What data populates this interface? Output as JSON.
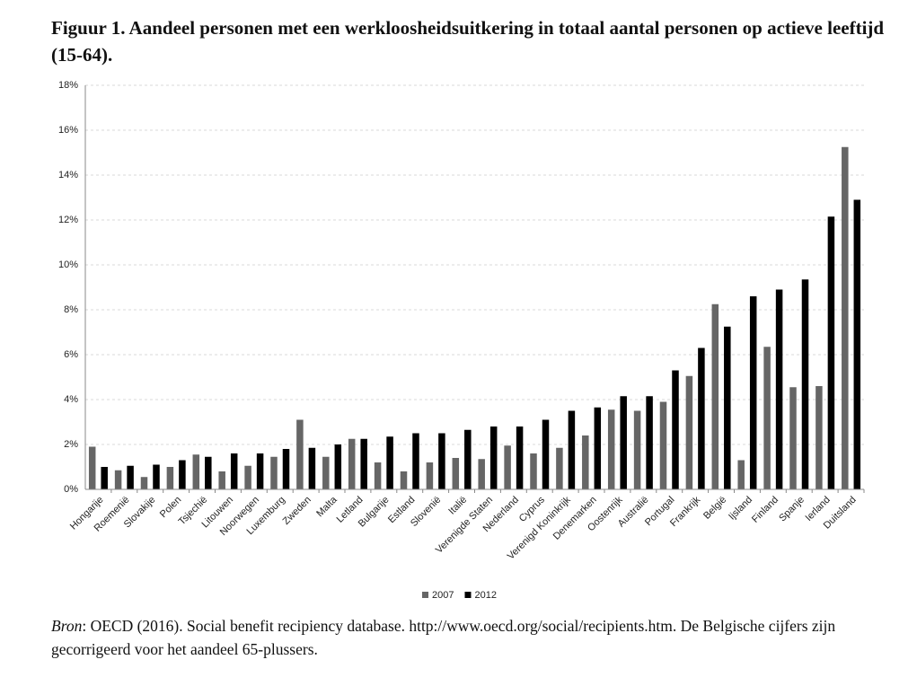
{
  "chart_data": {
    "type": "bar",
    "title": "Figuur 1. Aandeel personen met een werkloosheidsuitkering in totaal aantal personen op actieve leeftijd (15-64).",
    "categories": [
      "Hongarije",
      "Roemenië",
      "Slovakije",
      "Polen",
      "Tsjechië",
      "Litouwen",
      "Noorwegen",
      "Luxemburg",
      "Zweden",
      "Malta",
      "Letland",
      "Bulgarije",
      "Estland",
      "Slovenië",
      "Italië",
      "Verenigde Staten",
      "Nederland",
      "Cyprus",
      "Verenigd Koninkrijk",
      "Denemarken",
      "Oostenrijk",
      "Australië",
      "Portugal",
      "Frankrijk",
      "België",
      "Ijsland",
      "Finland",
      "Spanje",
      "Ierland",
      "Duitsland"
    ],
    "series": [
      {
        "name": "2007",
        "color": "#666666",
        "values": [
          1.9,
          0.85,
          0.55,
          1.0,
          1.55,
          0.8,
          1.05,
          1.45,
          3.1,
          1.45,
          2.25,
          1.2,
          0.8,
          1.2,
          1.4,
          1.35,
          1.95,
          1.6,
          1.85,
          2.4,
          3.55,
          3.5,
          3.9,
          5.05,
          8.25,
          1.3,
          6.35,
          4.55,
          4.6,
          15.25
        ]
      },
      {
        "name": "2012",
        "color": "#000000",
        "values": [
          1.0,
          1.05,
          1.1,
          1.3,
          1.45,
          1.6,
          1.6,
          1.8,
          1.85,
          2.0,
          2.25,
          2.35,
          2.5,
          2.5,
          2.65,
          2.8,
          2.8,
          3.1,
          3.5,
          3.65,
          4.15,
          4.15,
          5.3,
          6.3,
          7.25,
          8.6,
          8.9,
          9.35,
          12.15,
          12.9
        ]
      }
    ],
    "ylim": [
      0,
      18
    ],
    "yticks": [
      {
        "value": 0,
        "label": "0%"
      },
      {
        "value": 2,
        "label": "2%"
      },
      {
        "value": 4,
        "label": "4%"
      },
      {
        "value": 6,
        "label": "6%"
      },
      {
        "value": 8,
        "label": "8%"
      },
      {
        "value": 10,
        "label": "10%"
      },
      {
        "value": 12,
        "label": "12%"
      },
      {
        "value": 14,
        "label": "14%"
      },
      {
        "value": 16,
        "label": "16%"
      },
      {
        "value": 18,
        "label": "18%"
      }
    ],
    "grid": true,
    "legend": "bottom",
    "source_label": "Bron",
    "source_text": ": OECD (2016). Social benefit recipiency database. http://www.oecd.org/social/recipients.htm. De Belgische cijfers zijn gecorrigeerd voor het aandeel 65-plussers."
  }
}
